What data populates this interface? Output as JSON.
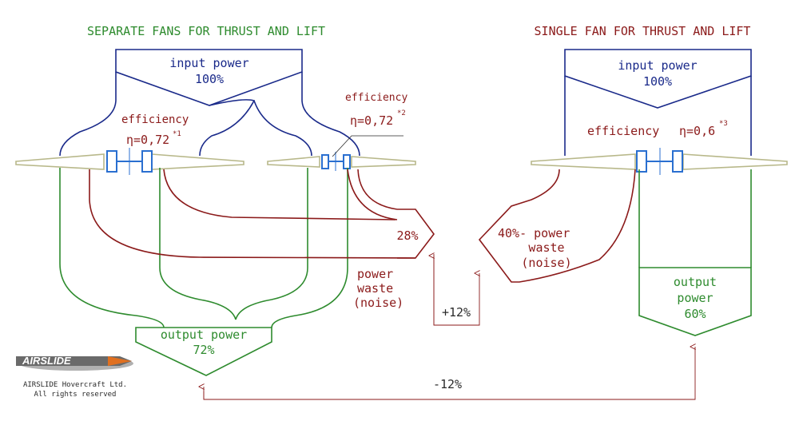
{
  "left_title": "SEPARATE FANS FOR THRUST AND LIFT",
  "right_title": "SINGLE FAN FOR THRUST AND LIFT",
  "left_input_label": "input power",
  "left_input_value": "100%",
  "right_input_label": "input power",
  "right_input_value": "100%",
  "left_eff1_label": "efficiency",
  "left_eff1_value": "η=0,72",
  "left_eff1_note": "*1",
  "left_eff2_label": "efficiency",
  "left_eff2_value": "η=0,72",
  "left_eff2_note": "*2",
  "right_eff_label": "efficiency",
  "right_eff_value": "η=0,6",
  "right_eff_note": "*3",
  "left_waste_value": "28%",
  "left_waste_line1": "power",
  "left_waste_line2": "waste",
  "left_waste_line3": "(noise)",
  "right_waste_line1": "40%- power",
  "right_waste_line2": "waste",
  "right_waste_line3": "(noise)",
  "left_output_label": "output power",
  "left_output_value": "72%",
  "right_output_line1": "output",
  "right_output_line2": "power",
  "right_output_value": "60%",
  "delta_waste": "+12%",
  "delta_output": "-12%",
  "logo_text": "AIRSLIDE",
  "company_line1": "AIRSLIDE Hovercraft Ltd.",
  "company_line2": "All rights reserved",
  "colors": {
    "green": "#2e8b2e",
    "darkred": "#8b1a1a",
    "navy": "#1a2a8a",
    "fan": "#b8b88a",
    "hub": "#2a6fd0"
  }
}
